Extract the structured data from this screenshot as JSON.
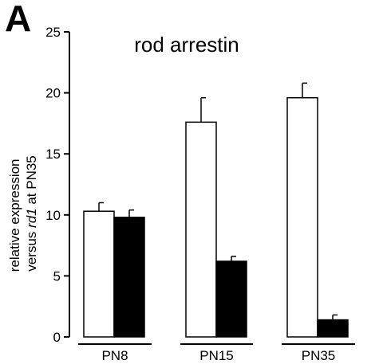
{
  "panel_label": "A",
  "chart_data": {
    "type": "bar",
    "title": "rod arrestin",
    "ylabel_line1": "relative expression",
    "ylabel_line2_prefix": "versus ",
    "ylabel_line2_italic": "rd1",
    "ylabel_line2_suffix": " at PN35",
    "xlabel": "",
    "categories": [
      "PN8",
      "PN15",
      "PN35"
    ],
    "ylim": [
      0,
      25
    ],
    "yticks": [
      0,
      5,
      10,
      15,
      20,
      25
    ],
    "series": [
      {
        "values": [
          10.3,
          17.6,
          19.6
        ],
        "errors": [
          0.7,
          2.0,
          1.2
        ],
        "fill": "#ffffff",
        "stroke": "#000000"
      },
      {
        "values": [
          9.8,
          6.2,
          1.4
        ],
        "errors": [
          0.6,
          0.4,
          0.4
        ],
        "fill": "#000000",
        "stroke": "#000000"
      }
    ],
    "grid": false,
    "legend": "none"
  }
}
